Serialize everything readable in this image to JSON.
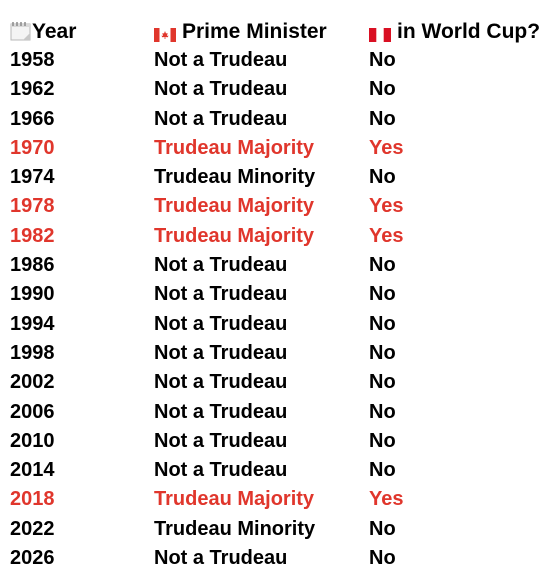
{
  "header": {
    "year": "Year",
    "prime_minister": "Prime Minister",
    "world_cup": "in World Cup?",
    "year_icon": "calendar-icon",
    "pm_icon": "canada-flag-icon",
    "wc_icon": "peru-flag-icon"
  },
  "colors": {
    "highlight": "#e0362c",
    "normal": "#000000"
  },
  "rows": [
    {
      "year": "1958",
      "pm": "Not a Trudeau",
      "wc": "No",
      "highlight": false
    },
    {
      "year": "1962",
      "pm": "Not a Trudeau",
      "wc": "No",
      "highlight": false
    },
    {
      "year": "1966",
      "pm": "Not a Trudeau",
      "wc": "No",
      "highlight": false
    },
    {
      "year": "1970",
      "pm": "Trudeau Majority",
      "wc": "Yes",
      "highlight": true
    },
    {
      "year": "1974",
      "pm": "Trudeau Minority",
      "wc": "No",
      "highlight": false
    },
    {
      "year": "1978",
      "pm": "Trudeau Majority",
      "wc": "Yes",
      "highlight": true
    },
    {
      "year": "1982",
      "pm": "Trudeau Majority",
      "wc": "Yes",
      "highlight": true
    },
    {
      "year": "1986",
      "pm": "Not a Trudeau",
      "wc": "No",
      "highlight": false
    },
    {
      "year": "1990",
      "pm": "Not a Trudeau",
      "wc": "No",
      "highlight": false
    },
    {
      "year": "1994",
      "pm": "Not a Trudeau",
      "wc": "No",
      "highlight": false
    },
    {
      "year": "1998",
      "pm": "Not a Trudeau",
      "wc": "No",
      "highlight": false
    },
    {
      "year": "2002",
      "pm": "Not a Trudeau",
      "wc": "No",
      "highlight": false
    },
    {
      "year": "2006",
      "pm": "Not a Trudeau",
      "wc": "No",
      "highlight": false
    },
    {
      "year": "2010",
      "pm": "Not a Trudeau",
      "wc": "No",
      "highlight": false
    },
    {
      "year": "2014",
      "pm": "Not a Trudeau",
      "wc": "No",
      "highlight": false
    },
    {
      "year": "2018",
      "pm": "Trudeau Majority",
      "wc": "Yes",
      "highlight": true
    },
    {
      "year": "2022",
      "pm": "Trudeau Minority",
      "wc": "No",
      "highlight": false
    },
    {
      "year": "2026",
      "pm": "Not a Trudeau",
      "wc": "No",
      "highlight": false
    }
  ]
}
